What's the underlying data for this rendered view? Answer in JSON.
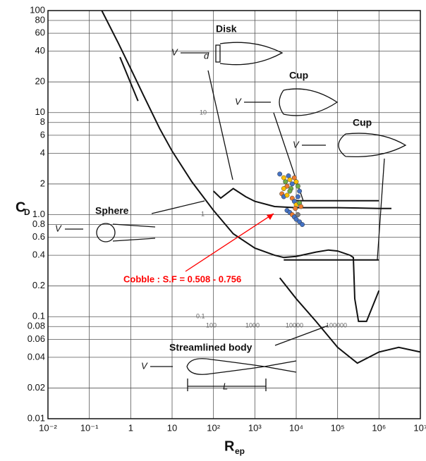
{
  "chart_data": {
    "type": "line",
    "ylabel": "C",
    "ylabel_sub": "D",
    "xlabel": "R",
    "xlabel_sub": "ep",
    "xscale": "log",
    "yscale": "log",
    "grid": true,
    "xlim": [
      0.01,
      10000000
    ],
    "ylim": [
      0.01,
      100
    ],
    "xticks": [
      {
        "value": 0.01,
        "label": "10⁻²"
      },
      {
        "value": 0.1,
        "label": "10⁻¹"
      },
      1,
      10,
      {
        "value": 100,
        "label": "10²"
      },
      {
        "value": 1000,
        "label": "10³"
      },
      {
        "value": 10000,
        "label": "10⁴"
      },
      {
        "value": 100000,
        "label": "10⁵"
      },
      {
        "value": 1000000,
        "label": "10⁶"
      },
      {
        "value": 10000000,
        "label": "10⁷"
      }
    ],
    "yticks": [
      0.01,
      0.02,
      0.04,
      0.06,
      0.08,
      0.1,
      0.2,
      0.4,
      0.6,
      0.8,
      {
        "value": 1,
        "label": "1.0"
      },
      2,
      4,
      6,
      8,
      10,
      20,
      40,
      60,
      80,
      100
    ],
    "shape_labels": [
      "Disk",
      "Cup",
      "Cup",
      "Sphere",
      "Streamlined body"
    ],
    "symbols": [
      "V",
      "d",
      "L"
    ],
    "annotation": "Cobble : S.F = 0.508 - 0.756",
    "annotation_color": "#ff0000",
    "inset_labels": [
      "10",
      "1",
      "0.1",
      "100",
      "1000",
      "10000",
      "100000"
    ],
    "series": [
      {
        "type": "line",
        "color": "#111111",
        "x": [
          0.55,
          1.5
        ],
        "values": [
          35,
          13
        ]
      },
      {
        "type": "line",
        "color": "#111111",
        "x": [
          0.2,
          0.5,
          1,
          2,
          5,
          10,
          30,
          100,
          300,
          1000,
          3000,
          5000,
          10000,
          30000,
          60000,
          100000,
          200000,
          240000,
          260000,
          320000,
          500000,
          1000000
        ],
        "values": [
          100,
          48,
          27,
          15,
          7,
          4.2,
          2.1,
          1.1,
          0.65,
          0.47,
          0.4,
          0.38,
          0.39,
          0.43,
          0.45,
          0.44,
          0.4,
          0.38,
          0.15,
          0.09,
          0.09,
          0.18
        ]
      },
      {
        "type": "line",
        "color": "#111111",
        "x": [
          100,
          150,
          300,
          600,
          1000,
          3000,
          10000,
          100000,
          1000000,
          2000000
        ],
        "values": [
          1.7,
          1.45,
          1.8,
          1.5,
          1.35,
          1.2,
          1.17,
          1.17,
          1.15,
          1.15
        ]
      },
      {
        "type": "line",
        "color": "#111111",
        "x": [
          10000,
          1000000
        ],
        "values": [
          1.37,
          1.37
        ]
      },
      {
        "type": "line",
        "color": "#111111",
        "x": [
          5000,
          1000000
        ],
        "values": [
          0.36,
          0.36
        ]
      },
      {
        "type": "line",
        "color": "#111111",
        "x": [
          4000,
          10000,
          30000,
          100000,
          300000,
          1000000,
          3000000,
          10000000
        ],
        "values": [
          0.24,
          0.15,
          0.09,
          0.05,
          0.035,
          0.045,
          0.05,
          0.045
        ]
      },
      {
        "type": "scatter",
        "x": [
          4000,
          5000,
          5500,
          6000,
          6500,
          7000,
          7500,
          8000,
          9000,
          10000,
          11000,
          12000,
          4500,
          5000,
          6000,
          7000,
          8000,
          9000,
          10000,
          11000,
          12000,
          13000,
          6000,
          7000,
          8000,
          9000,
          10000,
          11000,
          12000,
          14000,
          5000,
          9500
        ],
        "values": [
          2.5,
          2.3,
          2.1,
          1.9,
          2.4,
          2.2,
          1.8,
          2.0,
          2.3,
          2.1,
          1.9,
          1.7,
          1.6,
          1.5,
          1.55,
          1.7,
          1.45,
          1.35,
          1.25,
          1.5,
          1.3,
          1.2,
          1.1,
          1.05,
          1.0,
          0.95,
          0.9,
          1.0,
          0.85,
          0.8,
          1.8,
          1.15
        ],
        "colors": [
          "#4472c4",
          "#ffc000",
          "#70ad47",
          "#ed7d31",
          "#4472c4",
          "#ffc000",
          "#70ad47",
          "#4472c4",
          "#ed7d31",
          "#ffc000",
          "#70ad47",
          "#4472c4",
          "#ed7d31",
          "#4472c4",
          "#ffc000",
          "#70ad47",
          "#ed7d31",
          "#4472c4",
          "#ffc000",
          "#4472c4",
          "#70ad47",
          "#ed7d31",
          "#4472c4",
          "#4472c4",
          "#ed7d31",
          "#4472c4",
          "#4472c4",
          "#7f7f7f",
          "#4472c4",
          "#4472c4",
          "#ffc000",
          "#ed7d31"
        ]
      }
    ]
  }
}
